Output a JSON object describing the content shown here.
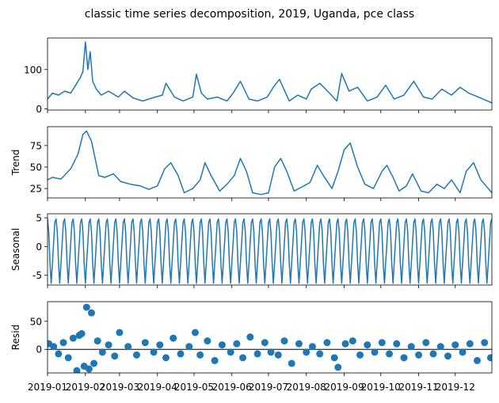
{
  "chart_data": {
    "type": "line",
    "title": "classic time series decomposition, 2019, Uganda, pce class",
    "color": "#1f77b4",
    "x_range": [
      "2019-01-01",
      "2019-12-31"
    ],
    "x_tick_labels": [
      "2019-01",
      "2019-02",
      "2019-03",
      "2019-04",
      "2019-05",
      "2019-06",
      "2019-07",
      "2019-08",
      "2019-09",
      "2019-10",
      "2019-11",
      "2019-12"
    ],
    "panels": [
      {
        "id": "observed",
        "type": "line",
        "ylabel": "",
        "ylim": [
          -3,
          180
        ],
        "y_ticks": [
          0,
          100
        ],
        "x": [
          "2019-01-01",
          "2019-01-05",
          "2019-01-10",
          "2019-01-15",
          "2019-01-20",
          "2019-01-25",
          "2019-01-28",
          "2019-01-30",
          "2019-02-01",
          "2019-02-03",
          "2019-02-05",
          "2019-02-07",
          "2019-02-10",
          "2019-02-14",
          "2019-02-20",
          "2019-02-28",
          "2019-03-05",
          "2019-03-12",
          "2019-03-20",
          "2019-03-28",
          "2019-04-05",
          "2019-04-08",
          "2019-04-15",
          "2019-04-22",
          "2019-04-30",
          "2019-05-03",
          "2019-05-07",
          "2019-05-12",
          "2019-05-20",
          "2019-05-28",
          "2019-06-02",
          "2019-06-08",
          "2019-06-15",
          "2019-06-22",
          "2019-06-30",
          "2019-07-05",
          "2019-07-10",
          "2019-07-18",
          "2019-07-25",
          "2019-08-01",
          "2019-08-05",
          "2019-08-12",
          "2019-08-20",
          "2019-08-26",
          "2019-08-30",
          "2019-09-05",
          "2019-09-12",
          "2019-09-20",
          "2019-09-28",
          "2019-10-05",
          "2019-10-12",
          "2019-10-20",
          "2019-10-28",
          "2019-11-05",
          "2019-11-12",
          "2019-11-20",
          "2019-11-28",
          "2019-12-05",
          "2019-12-12",
          "2019-12-20",
          "2019-12-31"
        ],
        "values": [
          25,
          40,
          35,
          45,
          40,
          65,
          80,
          95,
          170,
          100,
          145,
          70,
          50,
          35,
          45,
          30,
          45,
          28,
          20,
          28,
          35,
          65,
          30,
          20,
          30,
          88,
          40,
          25,
          30,
          20,
          40,
          70,
          25,
          20,
          30,
          55,
          75,
          20,
          35,
          25,
          50,
          65,
          40,
          20,
          90,
          45,
          55,
          20,
          30,
          60,
          25,
          35,
          70,
          30,
          25,
          50,
          35,
          55,
          40,
          30,
          15
        ]
      },
      {
        "id": "trend",
        "type": "line",
        "ylabel": "Trend",
        "ylim": [
          14,
          97
        ],
        "y_ticks": [
          25,
          50,
          75
        ],
        "x": [
          "2019-01-01",
          "2019-01-05",
          "2019-01-12",
          "2019-01-20",
          "2019-01-26",
          "2019-01-30",
          "2019-02-02",
          "2019-02-06",
          "2019-02-12",
          "2019-02-17",
          "2019-02-24",
          "2019-03-02",
          "2019-03-10",
          "2019-03-18",
          "2019-03-25",
          "2019-04-01",
          "2019-04-07",
          "2019-04-12",
          "2019-04-18",
          "2019-04-23",
          "2019-04-30",
          "2019-05-06",
          "2019-05-10",
          "2019-05-15",
          "2019-05-22",
          "2019-05-28",
          "2019-06-03",
          "2019-06-08",
          "2019-06-13",
          "2019-06-18",
          "2019-06-25",
          "2019-07-01",
          "2019-07-06",
          "2019-07-11",
          "2019-07-16",
          "2019-07-22",
          "2019-07-30",
          "2019-08-04",
          "2019-08-10",
          "2019-08-15",
          "2019-08-22",
          "2019-08-27",
          "2019-09-01",
          "2019-09-06",
          "2019-09-12",
          "2019-09-18",
          "2019-09-25",
          "2019-10-02",
          "2019-10-06",
          "2019-10-11",
          "2019-10-16",
          "2019-10-22",
          "2019-10-27",
          "2019-11-03",
          "2019-11-09",
          "2019-11-16",
          "2019-11-22",
          "2019-11-28",
          "2019-12-05",
          "2019-12-10",
          "2019-12-16",
          "2019-12-22",
          "2019-12-31"
        ],
        "values": [
          35,
          38,
          36,
          48,
          65,
          88,
          92,
          80,
          40,
          38,
          42,
          33,
          30,
          28,
          24,
          28,
          48,
          55,
          40,
          20,
          25,
          35,
          55,
          40,
          22,
          30,
          40,
          60,
          45,
          20,
          18,
          20,
          50,
          60,
          45,
          22,
          28,
          32,
          52,
          40,
          25,
          45,
          70,
          78,
          50,
          30,
          25,
          45,
          52,
          38,
          22,
          28,
          42,
          22,
          20,
          30,
          25,
          35,
          20,
          45,
          55,
          35,
          20
        ]
      },
      {
        "id": "seasonal",
        "type": "line",
        "ylabel": "Seasonal",
        "ylim": [
          -6.7,
          5.7
        ],
        "y_ticks": [
          -5,
          0,
          5
        ],
        "period_days": 7,
        "weekly_pattern": [
          4.8,
          2.6,
          -2.9,
          -6.4,
          -2.9,
          0.6,
          4.2
        ],
        "x": [],
        "values": []
      },
      {
        "id": "resid",
        "type": "scatter",
        "ylabel": "Resid",
        "ylim": [
          -42,
          85
        ],
        "y_ticks": [
          0,
          50
        ],
        "x": [
          "2019-01-02",
          "2019-01-06",
          "2019-01-10",
          "2019-01-14",
          "2019-01-18",
          "2019-01-22",
          "2019-01-25",
          "2019-01-27",
          "2019-01-29",
          "2019-01-31",
          "2019-02-02",
          "2019-02-04",
          "2019-02-06",
          "2019-02-08",
          "2019-02-11",
          "2019-02-15",
          "2019-02-20",
          "2019-02-25",
          "2019-03-01",
          "2019-03-08",
          "2019-03-15",
          "2019-03-22",
          "2019-03-29",
          "2019-04-03",
          "2019-04-08",
          "2019-04-14",
          "2019-04-20",
          "2019-04-27",
          "2019-05-02",
          "2019-05-06",
          "2019-05-12",
          "2019-05-18",
          "2019-05-24",
          "2019-05-31",
          "2019-06-05",
          "2019-06-10",
          "2019-06-16",
          "2019-06-22",
          "2019-06-28",
          "2019-07-03",
          "2019-07-09",
          "2019-07-14",
          "2019-07-20",
          "2019-07-26",
          "2019-08-01",
          "2019-08-06",
          "2019-08-12",
          "2019-08-18",
          "2019-08-24",
          "2019-08-27",
          "2019-09-02",
          "2019-09-08",
          "2019-09-14",
          "2019-09-20",
          "2019-09-26",
          "2019-10-02",
          "2019-10-08",
          "2019-10-14",
          "2019-10-20",
          "2019-10-26",
          "2019-11-01",
          "2019-11-07",
          "2019-11-13",
          "2019-11-19",
          "2019-11-25",
          "2019-12-01",
          "2019-12-07",
          "2019-12-13",
          "2019-12-19",
          "2019-12-25",
          "2019-12-30"
        ],
        "values": [
          10,
          5,
          -8,
          12,
          -15,
          20,
          -38,
          25,
          28,
          -30,
          75,
          -35,
          65,
          -25,
          15,
          -5,
          8,
          -12,
          30,
          5,
          -10,
          12,
          -5,
          8,
          -15,
          20,
          -8,
          5,
          30,
          -10,
          15,
          -20,
          8,
          -5,
          10,
          -15,
          22,
          -8,
          12,
          -5,
          -10,
          15,
          -25,
          10,
          -5,
          5,
          -8,
          12,
          -15,
          -32,
          10,
          15,
          -10,
          8,
          -5,
          12,
          -8,
          10,
          -15,
          5,
          -10,
          12,
          -8,
          5,
          -12,
          8,
          -5,
          10,
          -20,
          12,
          -15
        ]
      }
    ]
  }
}
